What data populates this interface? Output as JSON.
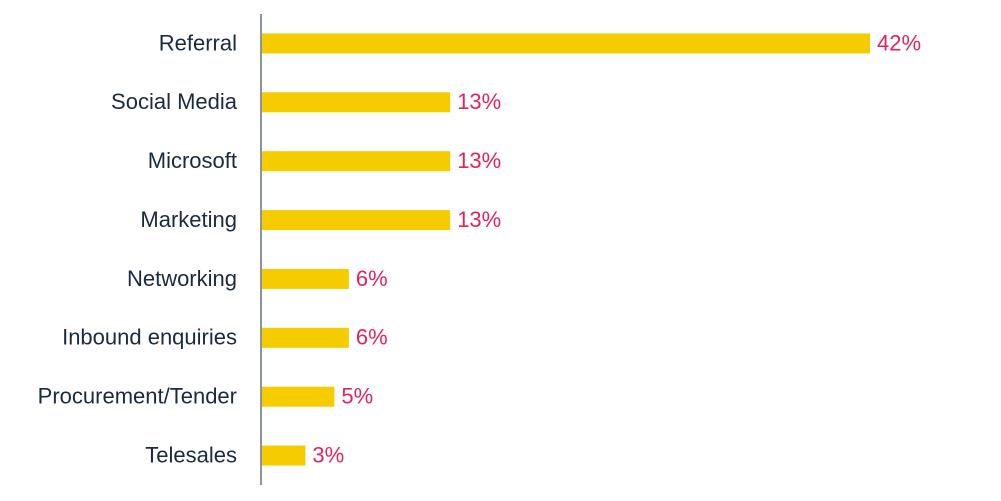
{
  "chart_data": {
    "type": "bar",
    "orientation": "horizontal",
    "categories": [
      "Referral",
      "Social Media",
      "Microsoft",
      "Marketing",
      "Networking",
      "Inbound enquiries",
      "Procurement/Tender",
      "Telesales"
    ],
    "values": [
      42,
      13,
      13,
      13,
      6,
      6,
      5,
      3
    ],
    "value_labels": [
      "42%",
      "13%",
      "13%",
      "13%",
      "6%",
      "6%",
      "5%",
      "3%"
    ],
    "color": "#f5cc00"
  }
}
